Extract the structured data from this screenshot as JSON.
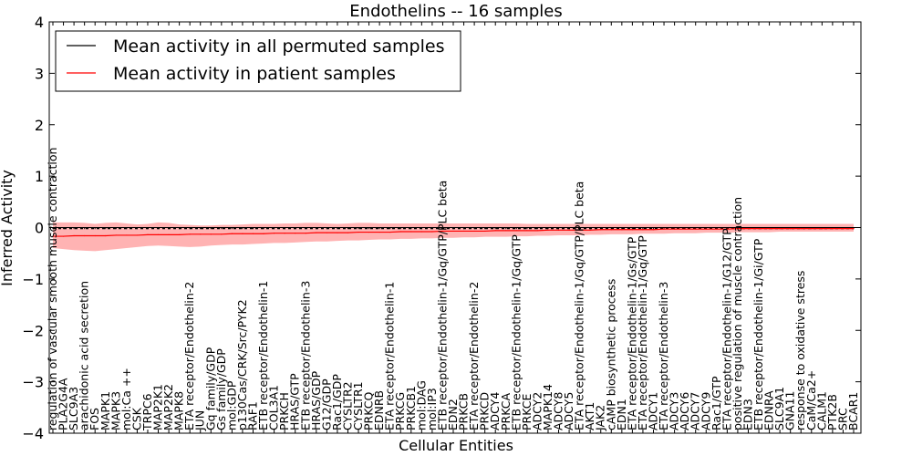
{
  "chart_data": {
    "type": "line",
    "title": "Endothelins -- 16 samples",
    "xlabel": "Cellular Entities",
    "ylabel": "Inferred Activity",
    "ylim": [
      -4,
      4
    ],
    "yticks": [
      -4,
      -3,
      -2,
      -1,
      0,
      1,
      2,
      3,
      4
    ],
    "legend_position": "top-left",
    "categories": [
      "regulation of vascular smooth muscle contraction",
      "PLA2G4A",
      "SLC9A3",
      "arachidonic acid secretion",
      "FOS",
      "MAPK1",
      "MAPK3",
      "mol:Ca ++",
      "CSK",
      "TRPC6",
      "MAP2K1",
      "MAP2K2",
      "MAPK8",
      "ETA receptor/Endothelin-2",
      "JUN",
      "Gq family/GDP",
      "Gs family/GDP",
      "mol:GDP",
      "p130Cas/CRK/Src/PYK2",
      "RAF1",
      "ETB receptor/Endothelin-1",
      "COL3A1",
      "PRKCH",
      "HRAS/GTP",
      "ETB receptor/Endothelin-3",
      "HRAS/GDP",
      "G12/GDP",
      "Rac1/GDP",
      "CYSLTR2",
      "CYSLTR1",
      "PRKCQ",
      "EDNRB",
      "ETA receptor/Endothelin-1",
      "PRKCG",
      "PRKCB1",
      "mol:DAG",
      "mol:IP3",
      "ETB receptor/Endothelin-1/Gq/GTP/PLC beta",
      "EDN2",
      "PRKCB",
      "ETA receptor/Endothelin-2",
      "PRKCD",
      "ADCY4",
      "PRKCA",
      "ETB receptor/Endothelin-1/Gq/GTP",
      "PRKCE",
      "ADCY2",
      "MAPK14",
      "ADCY8",
      "ADCY5",
      "ETA receptor/Endothelin-1/Gq/GTP/PLC beta",
      "AKT1",
      "JAK2",
      "cAMP biosynthetic process",
      "EDN1",
      "ETA receptor/Endothelin-1/Gs/GTP",
      "ETA receptor/Endothelin-1/Gq/GTP",
      "ADCY1",
      "ETA receptor/Endothelin-3",
      "ADCY3",
      "ADCY6",
      "ADCY7",
      "ADCY9",
      "Rac1/GTP",
      "ETA receptor/Endothelin-1/G12/GTP",
      "positive regulation of muscle contraction",
      "EDN3",
      "ETB receptor/Endothelin-1/Gi/GTP",
      "EDNRA",
      "SLC9A1",
      "GNA11",
      "response to oxidative stress",
      "CaM/Ca2+",
      "CALM1",
      "PTK2B",
      "SRC",
      "BCAR1"
    ],
    "series": [
      {
        "name": "Mean activity in all permuted samples",
        "color": "#000000",
        "values": [
          -0.02,
          -0.02,
          -0.02,
          -0.02,
          -0.02,
          -0.02,
          -0.02,
          -0.02,
          -0.02,
          -0.02,
          -0.02,
          -0.02,
          -0.02,
          -0.02,
          -0.02,
          -0.02,
          -0.02,
          -0.02,
          -0.02,
          -0.02,
          -0.02,
          -0.02,
          -0.02,
          -0.02,
          -0.02,
          -0.02,
          -0.02,
          -0.02,
          -0.02,
          -0.02,
          -0.02,
          -0.02,
          -0.02,
          -0.02,
          -0.02,
          -0.02,
          -0.02,
          -0.02,
          -0.02,
          -0.02,
          -0.02,
          -0.02,
          -0.02,
          -0.02,
          -0.02,
          -0.02,
          -0.02,
          -0.02,
          -0.02,
          -0.02,
          -0.02,
          -0.02,
          -0.02,
          -0.02,
          -0.02,
          -0.02,
          -0.02,
          -0.02,
          -0.02,
          -0.02,
          -0.02,
          -0.02,
          -0.02,
          -0.02,
          -0.02,
          -0.02,
          -0.02,
          -0.02,
          -0.02,
          -0.02,
          -0.02,
          -0.02,
          -0.02,
          -0.02,
          -0.02,
          -0.02,
          -0.02
        ]
      },
      {
        "name": "Mean activity in patient samples",
        "color": "#ff0000",
        "values": [
          -0.17,
          -0.17,
          -0.16,
          -0.16,
          -0.16,
          -0.16,
          -0.15,
          -0.15,
          -0.15,
          -0.14,
          -0.14,
          -0.14,
          -0.14,
          -0.13,
          -0.13,
          -0.13,
          -0.13,
          -0.12,
          -0.12,
          -0.12,
          -0.12,
          -0.11,
          -0.11,
          -0.11,
          -0.11,
          -0.1,
          -0.1,
          -0.1,
          -0.1,
          -0.09,
          -0.09,
          -0.09,
          -0.09,
          -0.08,
          -0.08,
          -0.08,
          -0.08,
          -0.07,
          -0.07,
          -0.07,
          -0.07,
          -0.07,
          -0.06,
          -0.06,
          -0.06,
          -0.06,
          -0.06,
          -0.05,
          -0.05,
          -0.05,
          -0.05,
          -0.05,
          -0.04,
          -0.04,
          -0.04,
          -0.04,
          -0.04,
          -0.04,
          -0.03,
          -0.03,
          -0.03,
          -0.03,
          -0.03,
          -0.03,
          -0.03,
          -0.02,
          -0.02,
          -0.02,
          -0.02,
          -0.02,
          -0.02,
          -0.02,
          -0.02,
          -0.02,
          -0.02,
          -0.02,
          -0.02
        ],
        "band_low": [
          -0.4,
          -0.42,
          -0.44,
          -0.45,
          -0.46,
          -0.44,
          -0.42,
          -0.4,
          -0.38,
          -0.36,
          -0.35,
          -0.36,
          -0.37,
          -0.38,
          -0.37,
          -0.35,
          -0.34,
          -0.33,
          -0.33,
          -0.32,
          -0.31,
          -0.3,
          -0.3,
          -0.29,
          -0.28,
          -0.27,
          -0.27,
          -0.26,
          -0.25,
          -0.25,
          -0.24,
          -0.23,
          -0.23,
          -0.22,
          -0.22,
          -0.21,
          -0.21,
          -0.2,
          -0.2,
          -0.19,
          -0.19,
          -0.18,
          -0.18,
          -0.18,
          -0.17,
          -0.17,
          -0.16,
          -0.16,
          -0.15,
          -0.15,
          -0.15,
          -0.14,
          -0.14,
          -0.13,
          -0.13,
          -0.13,
          -0.12,
          -0.12,
          -0.12,
          -0.11,
          -0.11,
          -0.11,
          -0.1,
          -0.1,
          -0.1,
          -0.09,
          -0.09,
          -0.09,
          -0.09,
          -0.08,
          -0.08,
          -0.08,
          -0.08,
          -0.08,
          -0.08,
          -0.08,
          -0.08
        ],
        "band_high": [
          0.1,
          0.1,
          0.1,
          0.09,
          0.07,
          0.09,
          0.1,
          0.08,
          0.06,
          0.07,
          0.1,
          0.09,
          0.06,
          0.05,
          0.04,
          0.04,
          0.05,
          0.05,
          0.06,
          0.07,
          0.07,
          0.07,
          0.08,
          0.08,
          0.09,
          0.09,
          0.08,
          0.07,
          0.08,
          0.09,
          0.09,
          0.08,
          0.08,
          0.08,
          0.08,
          0.08,
          0.08,
          0.08,
          0.08,
          0.08,
          0.08,
          0.08,
          0.08,
          0.08,
          0.08,
          0.07,
          0.07,
          0.07,
          0.07,
          0.07,
          0.07,
          0.07,
          0.07,
          0.07,
          0.07,
          0.07,
          0.07,
          0.07,
          0.07,
          0.07,
          0.07,
          0.07,
          0.07,
          0.07,
          0.07,
          0.07,
          0.07,
          0.07,
          0.07,
          0.07,
          0.07,
          0.07,
          0.07,
          0.07,
          0.07,
          0.07,
          0.07
        ]
      }
    ]
  }
}
